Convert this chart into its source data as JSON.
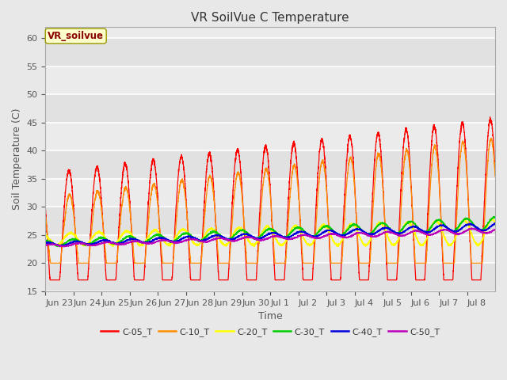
{
  "title": "VR SoilVue C Temperature",
  "ylabel": "Soil Temperature (C)",
  "xlabel": "Time",
  "ylim": [
    15,
    62
  ],
  "yticks": [
    15,
    20,
    25,
    30,
    35,
    40,
    45,
    50,
    55,
    60
  ],
  "legend_label": "VR_soilvue",
  "series_labels": [
    "C-05_T",
    "C-10_T",
    "C-20_T",
    "C-30_T",
    "C-40_T",
    "C-50_T"
  ],
  "series_colors": [
    "#ff0000",
    "#ff8c00",
    "#ffff00",
    "#00cc00",
    "#0000dd",
    "#bb00bb"
  ],
  "bg_color": "#e8e8e8",
  "plot_bg": "#ebebeb",
  "n_days": 16,
  "xtick_labels": [
    "Jun 23",
    "Jun 24",
    "Jun 25",
    "Jun 26",
    "Jun 27",
    "Jun 28",
    "Jun 29",
    "Jun 30",
    "Jul 1",
    "Jul 2",
    "Jul 3",
    "Jul 4",
    "Jul 5",
    "Jul 6",
    "Jul 7",
    "Jul 8"
  ],
  "title_fontsize": 11,
  "axis_fontsize": 9,
  "tick_fontsize": 8,
  "line_width": 0.9
}
